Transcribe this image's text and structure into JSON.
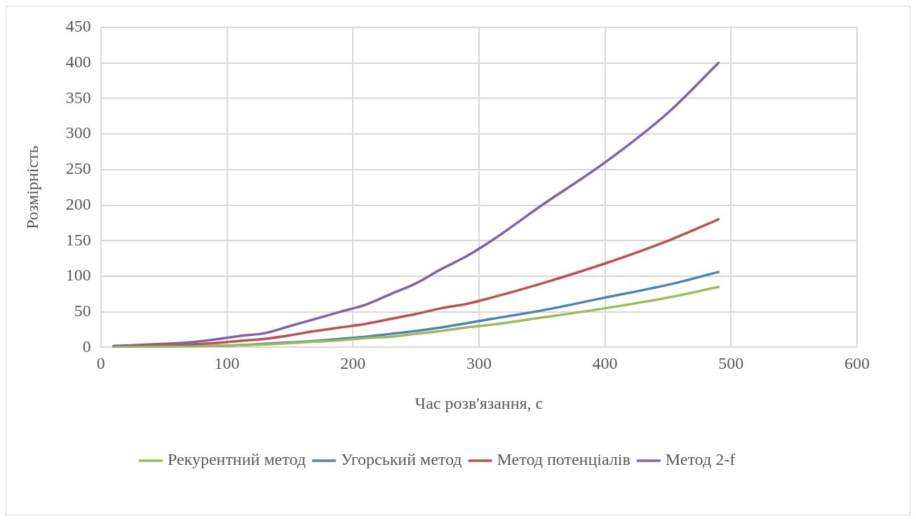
{
  "chart_data": {
    "type": "line",
    "xlabel": "Час розв'язання, с",
    "ylabel": "Розмірність",
    "x": [
      10,
      50,
      70,
      90,
      110,
      130,
      150,
      170,
      190,
      210,
      230,
      250,
      270,
      290,
      310,
      350,
      400,
      450,
      490
    ],
    "series": [
      {
        "name": "Рекурентний метод",
        "color": "#9bbb59",
        "values": [
          0,
          1,
          1,
          2,
          3,
          4,
          6,
          8,
          10,
          13,
          15,
          19,
          23,
          28,
          32,
          42,
          55,
          70,
          85
        ]
      },
      {
        "name": "Угорський метод",
        "color": "#4f81bd",
        "values": [
          1,
          1,
          2,
          2,
          3,
          5,
          7,
          9,
          12,
          15,
          19,
          23,
          28,
          34,
          40,
          52,
          70,
          88,
          106
        ]
      },
      {
        "name": "Метод потенціалів",
        "color": "#c0504d",
        "values": [
          1,
          3,
          4,
          6,
          9,
          12,
          17,
          23,
          28,
          33,
          40,
          47,
          55,
          61,
          70,
          90,
          118,
          150,
          180
        ]
      },
      {
        "name": "Метод 2-f",
        "color": "#8064a2",
        "values": [
          2,
          5,
          7,
          11,
          16,
          20,
          30,
          40,
          50,
          60,
          75,
          90,
          110,
          128,
          150,
          200,
          260,
          330,
          400
        ]
      }
    ],
    "xlim": [
      0,
      600
    ],
    "xticks": [
      0,
      100,
      200,
      300,
      400,
      500,
      600
    ],
    "ylim": [
      0,
      450
    ],
    "yticks": [
      0,
      50,
      100,
      150,
      200,
      250,
      300,
      350,
      400,
      450
    ],
    "grid": true,
    "legend": "bottom",
    "marker": "none",
    "line_style": "solid"
  }
}
